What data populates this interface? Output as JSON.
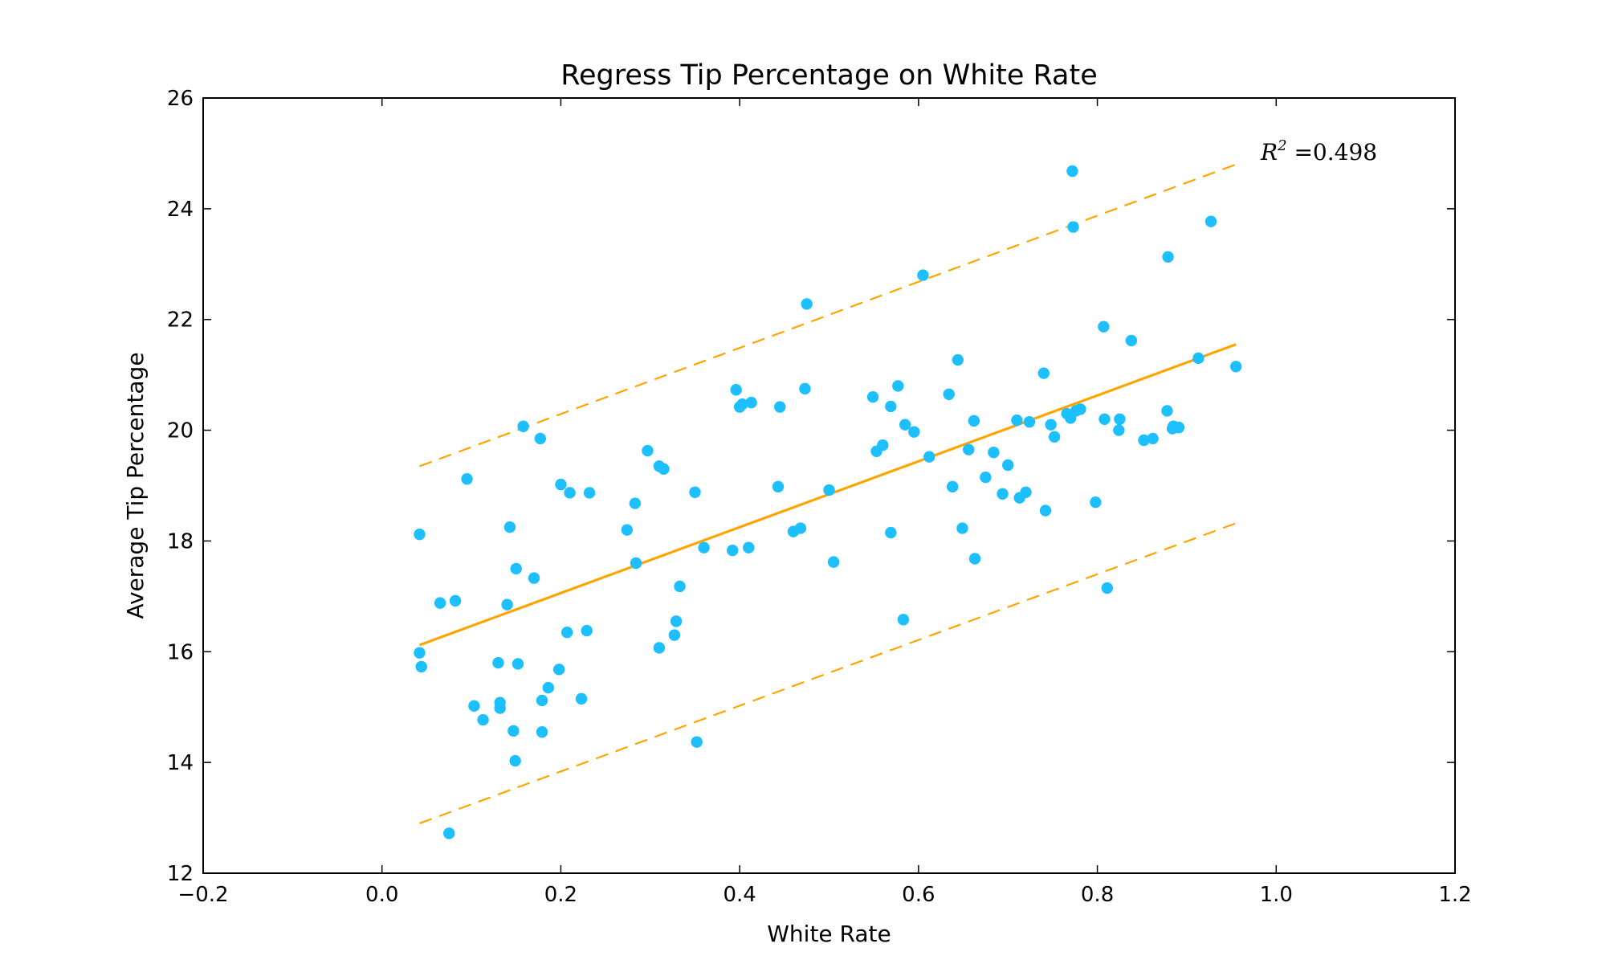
{
  "chart_data": {
    "type": "scatter",
    "title": "Regress Tip Percentage on White Rate",
    "xlabel": "White Rate",
    "ylabel": "Average Tip Percentage",
    "xlim": [
      -0.2,
      1.2
    ],
    "ylim": [
      12,
      26
    ],
    "xticks": [
      -0.2,
      0.0,
      0.2,
      0.4,
      0.6,
      0.8,
      1.0,
      1.2
    ],
    "xtick_labels": [
      "−0.2",
      "0.0",
      "0.2",
      "0.4",
      "0.6",
      "0.8",
      "1.0",
      "1.2"
    ],
    "yticks": [
      12,
      14,
      16,
      18,
      20,
      22,
      24,
      26
    ],
    "ytick_labels": [
      "12",
      "14",
      "16",
      "18",
      "20",
      "22",
      "24",
      "26"
    ],
    "grid": false,
    "legend": "none",
    "colors": {
      "points": "#1EBFFF",
      "fit": "#FFA500"
    },
    "annotation": {
      "prefix": "R",
      "superscript": "2",
      "equals": " =",
      "value": "0.498"
    },
    "fit_line": {
      "x": [
        0.042,
        0.955
      ],
      "y": [
        16.12,
        21.55
      ]
    },
    "upper_band": {
      "x": [
        0.042,
        0.955
      ],
      "y": [
        19.35,
        24.8
      ]
    },
    "lower_band": {
      "x": [
        0.042,
        0.955
      ],
      "y": [
        12.9,
        18.32
      ]
    },
    "points": [
      [
        0.042,
        18.12
      ],
      [
        0.042,
        15.98
      ],
      [
        0.044,
        15.73
      ],
      [
        0.065,
        16.88
      ],
      [
        0.075,
        12.72
      ],
      [
        0.082,
        16.92
      ],
      [
        0.095,
        19.12
      ],
      [
        0.103,
        15.02
      ],
      [
        0.113,
        14.77
      ],
      [
        0.13,
        15.8
      ],
      [
        0.132,
        15.08
      ],
      [
        0.132,
        14.98
      ],
      [
        0.14,
        16.85
      ],
      [
        0.143,
        18.25
      ],
      [
        0.147,
        14.57
      ],
      [
        0.149,
        14.03
      ],
      [
        0.15,
        17.5
      ],
      [
        0.152,
        15.78
      ],
      [
        0.158,
        20.07
      ],
      [
        0.17,
        17.33
      ],
      [
        0.177,
        19.85
      ],
      [
        0.179,
        15.12
      ],
      [
        0.179,
        14.55
      ],
      [
        0.186,
        15.35
      ],
      [
        0.198,
        15.68
      ],
      [
        0.2,
        19.02
      ],
      [
        0.207,
        16.35
      ],
      [
        0.21,
        18.87
      ],
      [
        0.223,
        15.15
      ],
      [
        0.229,
        16.38
      ],
      [
        0.232,
        18.87
      ],
      [
        0.274,
        18.2
      ],
      [
        0.283,
        18.68
      ],
      [
        0.284,
        17.6
      ],
      [
        0.297,
        19.63
      ],
      [
        0.31,
        16.07
      ],
      [
        0.31,
        19.35
      ],
      [
        0.315,
        19.3
      ],
      [
        0.327,
        16.3
      ],
      [
        0.329,
        16.55
      ],
      [
        0.333,
        17.18
      ],
      [
        0.35,
        18.88
      ],
      [
        0.352,
        14.37
      ],
      [
        0.36,
        17.88
      ],
      [
        0.392,
        17.83
      ],
      [
        0.396,
        20.73
      ],
      [
        0.4,
        20.42
      ],
      [
        0.403,
        20.47
      ],
      [
        0.41,
        17.88
      ],
      [
        0.413,
        20.5
      ],
      [
        0.443,
        18.98
      ],
      [
        0.445,
        20.42
      ],
      [
        0.46,
        18.17
      ],
      [
        0.468,
        18.23
      ],
      [
        0.473,
        20.75
      ],
      [
        0.475,
        22.28
      ],
      [
        0.5,
        18.92
      ],
      [
        0.505,
        17.62
      ],
      [
        0.549,
        20.6
      ],
      [
        0.553,
        19.62
      ],
      [
        0.56,
        19.73
      ],
      [
        0.569,
        20.43
      ],
      [
        0.569,
        18.15
      ],
      [
        0.577,
        20.8
      ],
      [
        0.583,
        16.58
      ],
      [
        0.585,
        20.1
      ],
      [
        0.595,
        19.97
      ],
      [
        0.605,
        22.8
      ],
      [
        0.612,
        19.52
      ],
      [
        0.634,
        20.65
      ],
      [
        0.638,
        18.98
      ],
      [
        0.644,
        21.27
      ],
      [
        0.649,
        18.23
      ],
      [
        0.656,
        19.65
      ],
      [
        0.662,
        20.17
      ],
      [
        0.663,
        17.68
      ],
      [
        0.675,
        19.15
      ],
      [
        0.684,
        19.6
      ],
      [
        0.694,
        18.85
      ],
      [
        0.7,
        19.37
      ],
      [
        0.71,
        20.18
      ],
      [
        0.713,
        18.78
      ],
      [
        0.72,
        18.88
      ],
      [
        0.724,
        20.15
      ],
      [
        0.74,
        21.03
      ],
      [
        0.742,
        18.55
      ],
      [
        0.748,
        20.1
      ],
      [
        0.752,
        19.88
      ],
      [
        0.766,
        20.3
      ],
      [
        0.77,
        20.22
      ],
      [
        0.772,
        24.68
      ],
      [
        0.773,
        23.67
      ],
      [
        0.776,
        20.35
      ],
      [
        0.781,
        20.38
      ],
      [
        0.798,
        18.7
      ],
      [
        0.807,
        21.87
      ],
      [
        0.808,
        20.2
      ],
      [
        0.811,
        17.15
      ],
      [
        0.824,
        20.0
      ],
      [
        0.825,
        20.2
      ],
      [
        0.838,
        21.62
      ],
      [
        0.852,
        19.82
      ],
      [
        0.862,
        19.85
      ],
      [
        0.878,
        20.35
      ],
      [
        0.879,
        23.13
      ],
      [
        0.884,
        20.03
      ],
      [
        0.885,
        20.07
      ],
      [
        0.891,
        20.05
      ],
      [
        0.913,
        21.3
      ],
      [
        0.927,
        23.77
      ],
      [
        0.955,
        21.15
      ]
    ]
  }
}
